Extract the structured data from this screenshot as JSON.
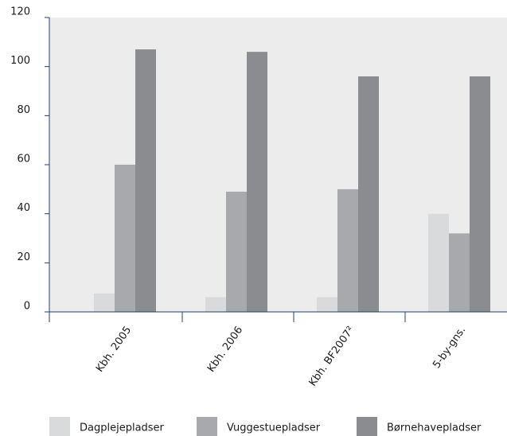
{
  "chart_data": {
    "type": "bar",
    "categories": [
      "Kbh. 2005",
      "Kbh. 2006",
      "Kbh. BF2007²",
      "5-by-gns."
    ],
    "series": [
      {
        "name": "Dagplejepladser",
        "color": "#d9dadb",
        "values": [
          7.5,
          6,
          6,
          40
        ]
      },
      {
        "name": "Vuggestuepladser",
        "color": "#a7a9ac",
        "values": [
          60,
          49,
          50,
          32
        ]
      },
      {
        "name": "Børnehavepladser",
        "color": "#8a8c8f",
        "values": [
          107,
          106,
          96,
          96
        ]
      }
    ],
    "ylim": [
      0,
      120
    ],
    "yticks": [
      0,
      20,
      40,
      60,
      80,
      100,
      120
    ],
    "grid": false,
    "legend": "bottom"
  }
}
